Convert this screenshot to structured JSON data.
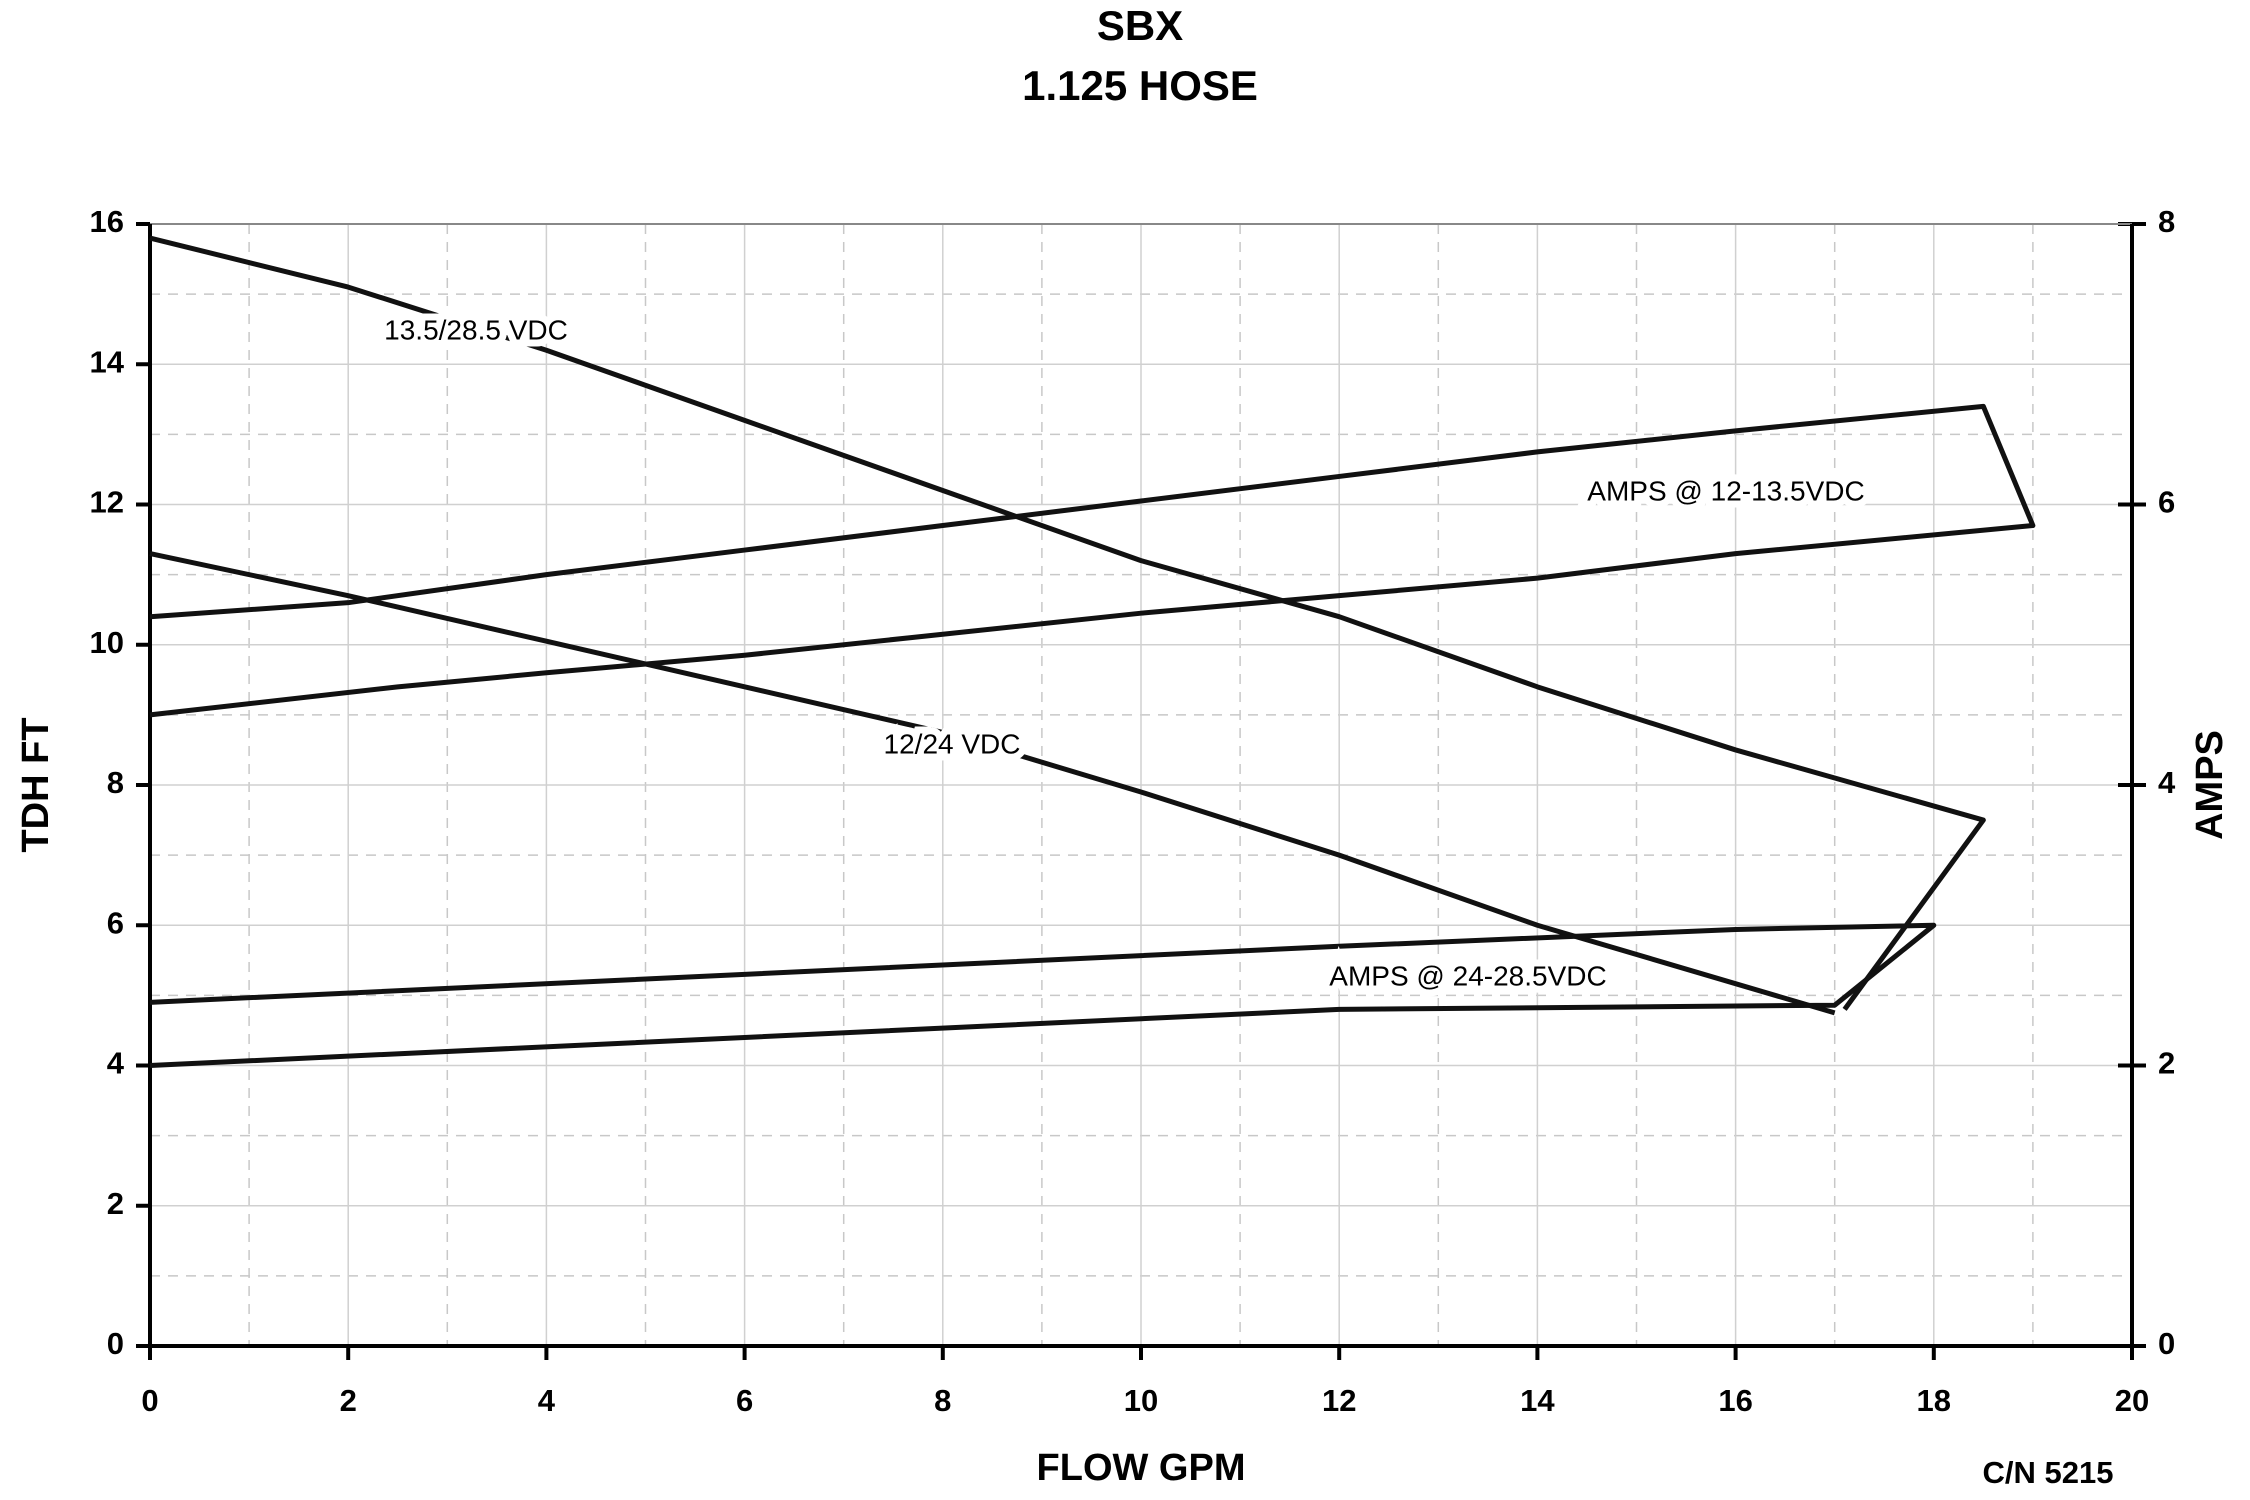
{
  "chart_data": {
    "type": "line",
    "title": "SBX",
    "subtitle": "1.125 HOSE",
    "x_label": "FLOW GPM",
    "y_label": "TDH FT",
    "y2_label": "AMPS",
    "annotation": "C/N 5215",
    "xlim": [
      0,
      20
    ],
    "xticks": [
      0,
      2,
      4,
      6,
      8,
      10,
      12,
      14,
      16,
      18,
      20
    ],
    "ylim": [
      0,
      16
    ],
    "yticks": [
      0,
      2,
      4,
      6,
      8,
      10,
      12,
      14,
      16
    ],
    "y2lim": [
      0,
      8
    ],
    "y2ticks": [
      0,
      2,
      4,
      6,
      8
    ],
    "grid": true,
    "minor_grid": true,
    "series": [
      {
        "name": "13.5/28.5 VDC",
        "color": "#111111",
        "x": [
          0,
          2,
          4,
          6,
          8,
          10,
          12,
          14,
          16,
          18.5,
          17.1
        ],
        "values": [
          15.8,
          15.1,
          14.2,
          13.2,
          12.2,
          11.2,
          10.4,
          9.4,
          8.5,
          7.5,
          4.8
        ]
      },
      {
        "name": "12/24 VDC",
        "color": "#111111",
        "x": [
          0,
          2,
          4,
          6,
          8,
          10,
          12,
          14,
          17
        ],
        "values": [
          11.3,
          10.7,
          10.05,
          9.4,
          8.75,
          7.9,
          7.0,
          6.0,
          4.75
        ]
      },
      {
        "name": "AMPS @ 12-13.5VDC",
        "color": "#111111",
        "axis": "y2",
        "x": [
          0,
          2,
          4,
          6,
          8,
          10,
          12,
          14,
          16,
          18.5,
          19,
          16,
          14,
          12,
          10,
          8,
          6,
          4,
          2.5,
          0
        ],
        "values": [
          5.2,
          5.3,
          5.5,
          5.675,
          5.85,
          6.025,
          6.2,
          6.375,
          6.525,
          6.7,
          5.85,
          5.65,
          5.475,
          5.35,
          5.225,
          5.075,
          4.925,
          4.8,
          4.7,
          4.5
        ]
      },
      {
        "name": "AMPS @ 24-28.5VDC",
        "color": "#111111",
        "axis": "y2",
        "x": [
          0,
          6,
          12,
          16,
          18,
          17,
          12,
          6,
          0
        ],
        "values": [
          2.45,
          2.65,
          2.85,
          2.97,
          3.0,
          2.43,
          2.4,
          2.2,
          2.0
        ]
      }
    ]
  }
}
